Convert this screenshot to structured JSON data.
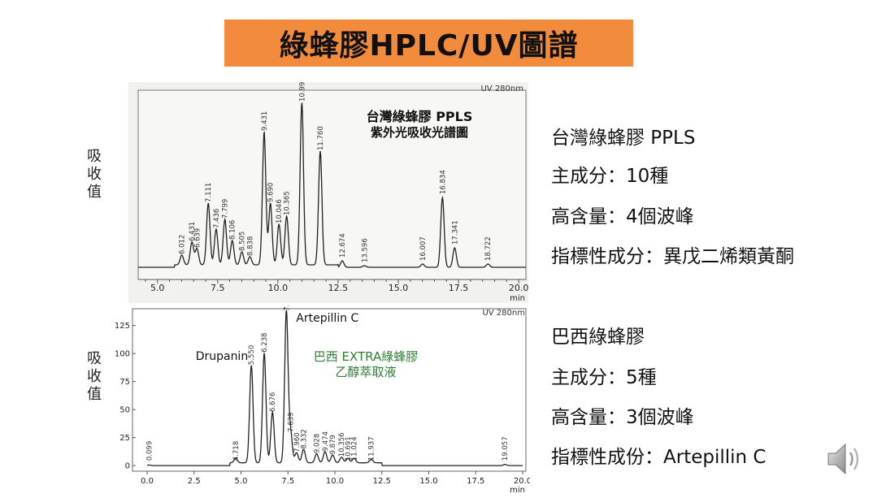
{
  "slide": {
    "title": "綠蜂膠HPLC/UV圖譜",
    "y_axis_label_top": "吸收值",
    "y_axis_label_bottom": "吸收值"
  },
  "taiwan_panel": {
    "heading": "台灣綠蜂膠 PPLS",
    "line1": "主成分：10種",
    "line2": "高含量：4個波峰",
    "line3": "指標性成分：異戊二烯類黃酮"
  },
  "brazil_panel": {
    "heading": "巴西綠蜂膠",
    "line1": "主成分：5種",
    "line2": "高含量：3個波峰",
    "line3": "指標性成份：Artepillin C"
  },
  "icons": {
    "speaker": "speaker-icon"
  },
  "chart_data": [
    {
      "type": "line",
      "detector": "UV 280nm",
      "title": "台灣綠蜂膠 PPLS",
      "subtitle": "紫外光吸收光譜圖",
      "xlabel": "min",
      "xlim": [
        4.2,
        20.3
      ],
      "xticks": [
        5.0,
        7.5,
        10.0,
        12.5,
        15.0,
        17.5,
        20.0
      ],
      "tick_labels": [
        "5.0",
        "7.5",
        "10.0",
        "12.5",
        "15.0",
        "17.5",
        "20.0"
      ],
      "peaks": [
        {
          "t": 6.012,
          "label": "6.012",
          "h": 0.06
        },
        {
          "t": 6.431,
          "label": "6.431",
          "h": 0.14
        },
        {
          "t": 6.639,
          "label": "6.639",
          "h": 0.1
        },
        {
          "t": 7.111,
          "label": "7.111",
          "h": 0.38
        },
        {
          "t": 7.436,
          "label": "7.436",
          "h": 0.22
        },
        {
          "t": 7.799,
          "label": "7.799",
          "h": 0.28
        },
        {
          "t": 8.106,
          "label": "8.106",
          "h": 0.15
        },
        {
          "t": 8.505,
          "label": "8.505",
          "h": 0.08
        },
        {
          "t": 8.838,
          "label": "8.838",
          "h": 0.05
        },
        {
          "t": 9.431,
          "label": "9.431",
          "h": 0.82
        },
        {
          "t": 9.69,
          "label": "9.690",
          "h": 0.38
        },
        {
          "t": 10.046,
          "label": "10.046",
          "h": 0.25
        },
        {
          "t": 10.365,
          "label": "10.365",
          "h": 0.3
        },
        {
          "t": 10.995,
          "label": "10.995",
          "h": 1.0
        },
        {
          "t": 11.76,
          "label": "11.760",
          "h": 0.7
        },
        {
          "t": 12.674,
          "label": "12.674",
          "h": 0.04
        },
        {
          "t": 13.596,
          "label": "13.596",
          "h": 0.01
        },
        {
          "t": 16.007,
          "label": "16.007",
          "h": 0.02
        },
        {
          "t": 16.834,
          "label": "16.834",
          "h": 0.43
        },
        {
          "t": 17.341,
          "label": "17.341",
          "h": 0.12
        },
        {
          "t": 18.722,
          "label": "18.722",
          "h": 0.02
        }
      ]
    },
    {
      "type": "line",
      "detector": "UV 280nm",
      "title": "巴西 EXTRA綠蜂膠",
      "subtitle": "乙醇萃取液",
      "xlabel": "min",
      "xlim": [
        0.0,
        20.0
      ],
      "ylim": [
        -5,
        140
      ],
      "xticks": [
        0.0,
        2.5,
        5.0,
        7.5,
        10.0,
        12.5,
        15.0,
        17.5,
        20.0
      ],
      "xtick_labels": [
        "0.0",
        "2.5",
        "5.0",
        "7.5",
        "10.0",
        "12.5",
        "15.0",
        "17.5",
        "20.0"
      ],
      "yticks": [
        0,
        25,
        50,
        75,
        100,
        125
      ],
      "ytick_labels": [
        "0",
        "25",
        "50",
        "75",
        "100",
        "125"
      ],
      "annotations": [
        {
          "text": "Drupanin",
          "t": 5.55
        },
        {
          "text": "Artepillin C",
          "t": 7.415
        }
      ],
      "peaks": [
        {
          "t": 0.099,
          "label": "0.099",
          "v": 0.5
        },
        {
          "t": 4.718,
          "label": "4.718",
          "v": 4
        },
        {
          "t": 5.55,
          "label": "5.550",
          "v": 87
        },
        {
          "t": 6.238,
          "label": "6.238",
          "v": 98
        },
        {
          "t": 6.676,
          "label": "6.676",
          "v": 45
        },
        {
          "t": 7.415,
          "label": "7.415",
          "v": 135
        },
        {
          "t": 7.639,
          "label": "7.639",
          "v": 27
        },
        {
          "t": 7.96,
          "label": "7.960",
          "v": 9
        },
        {
          "t": 8.332,
          "label": "8.332",
          "v": 12
        },
        {
          "t": 9.028,
          "label": "9.028",
          "v": 8
        },
        {
          "t": 9.474,
          "label": "9.474",
          "v": 10
        },
        {
          "t": 9.879,
          "label": "9.879",
          "v": 7
        },
        {
          "t": 10.356,
          "label": "10.356",
          "v": 5
        },
        {
          "t": 10.691,
          "label": "10.691",
          "v": 4
        },
        {
          "t": 11.024,
          "label": "11.024",
          "v": 4
        },
        {
          "t": 11.937,
          "label": "11.937",
          "v": 3
        },
        {
          "t": 19.057,
          "label": "19.057",
          "v": 1
        }
      ]
    }
  ]
}
